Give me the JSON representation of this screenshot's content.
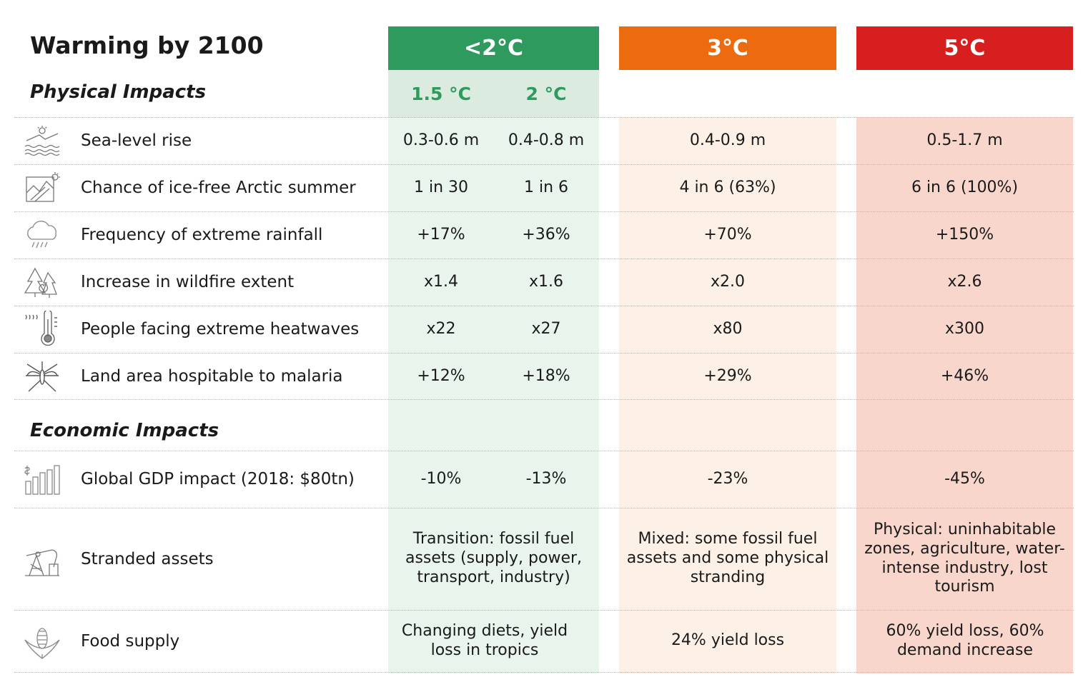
{
  "title": "Warming by 2100",
  "colors": {
    "green_header": "#2e9a5e",
    "green_bg": "#e9f4ec",
    "green_sub_bg": "#dcebe0",
    "orange_header": "#ec6b0e",
    "orange_bg": "#fdf1e7",
    "red_header": "#d71f1f",
    "red_bg": "#f8d6cc"
  },
  "headers": {
    "h1": "<2°C",
    "h1_sub1": "1.5 °C",
    "h1_sub2": "2 °C",
    "h2": "3°C",
    "h3": "5°C"
  },
  "sections": {
    "physical": "Physical Impacts",
    "economic": "Economic Impacts"
  },
  "chart_data": {
    "type": "table",
    "title": "Warming by 2100",
    "columns": [
      "1.5 °C",
      "2 °C",
      "3°C",
      "5°C"
    ],
    "physical_rows": [
      {
        "icon": "sea-level-icon",
        "label": "Sea-level rise",
        "values": [
          "0.3-0.6 m",
          "0.4-0.8 m",
          "0.4-0.9 m",
          "0.5-1.7 m"
        ]
      },
      {
        "icon": "arctic-ice-icon",
        "label": "Chance of ice-free Arctic summer",
        "values": [
          "1 in 30",
          "1 in 6",
          "4 in 6 (63%)",
          "6 in 6 (100%)"
        ]
      },
      {
        "icon": "rain-cloud-icon",
        "label": "Frequency of extreme rainfall",
        "values": [
          "+17%",
          "+36%",
          "+70%",
          "+150%"
        ]
      },
      {
        "icon": "wildfire-icon",
        "label": "Increase in wildfire extent",
        "values": [
          "x1.4",
          "x1.6",
          "x2.0",
          "x2.6"
        ]
      },
      {
        "icon": "thermometer-icon",
        "label": "People facing extreme heatwaves",
        "values": [
          "x22",
          "x27",
          "x80",
          "x300"
        ]
      },
      {
        "icon": "mosquito-icon",
        "label": "Land area hospitable to malaria",
        "values": [
          "+12%",
          "+18%",
          "+29%",
          "+46%"
        ]
      }
    ],
    "economic_rows": [
      {
        "icon": "gdp-chart-icon",
        "label": "Global GDP impact (2018: $80tn)",
        "values": [
          "-10%",
          "-13%",
          "-23%",
          "-45%"
        ]
      },
      {
        "icon": "oil-pump-icon",
        "label": "Stranded assets",
        "values": [
          "Transition: fossil fuel assets (supply, power, transport, industry)",
          "Mixed: some fossil fuel assets and some physical stranding",
          "Physical: uninhabitable zones, agriculture, water-intense industry, lost tourism"
        ]
      },
      {
        "icon": "corn-icon",
        "label": "Food supply",
        "values": [
          "Changing diets, yield loss in tropics",
          "24% yield loss",
          "60% yield loss, 60% demand increase"
        ]
      }
    ]
  }
}
